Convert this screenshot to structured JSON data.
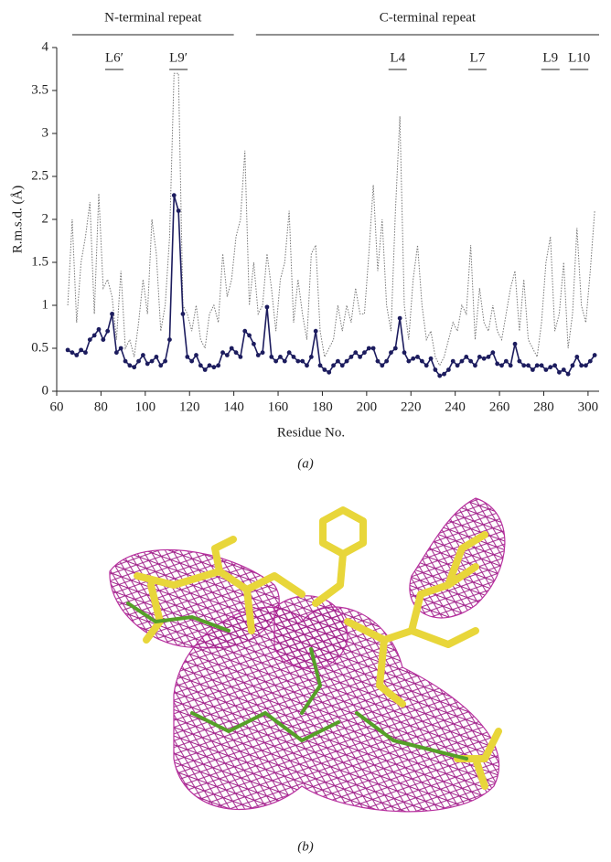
{
  "chart_data": {
    "type": "line",
    "caption": "(a)",
    "xlabel": "Residue No.",
    "ylabel": "R.m.s.d. (Å)",
    "xlim": [
      60,
      305
    ],
    "ylim": [
      0,
      4
    ],
    "xticks": [
      60,
      80,
      100,
      120,
      140,
      160,
      180,
      200,
      220,
      240,
      260,
      280,
      300
    ],
    "yticks": [
      0,
      0.5,
      1,
      1.5,
      2,
      2.5,
      3,
      3.5,
      4
    ],
    "annotations": [
      {
        "text": "N-terminal repeat",
        "range": [
          67,
          140
        ]
      },
      {
        "text": "C-terminal repeat",
        "range": [
          150,
          305
        ]
      },
      {
        "text": "L6′",
        "x": 86
      },
      {
        "text": "L9′",
        "x": 115
      },
      {
        "text": "L4",
        "x": 214
      },
      {
        "text": "L7",
        "x": 250
      },
      {
        "text": "L9",
        "x": 283
      },
      {
        "text": "L10",
        "x": 296
      }
    ],
    "x": [
      65,
      67,
      69,
      71,
      73,
      75,
      77,
      79,
      81,
      83,
      85,
      87,
      89,
      91,
      93,
      95,
      97,
      99,
      101,
      103,
      105,
      107,
      109,
      111,
      113,
      115,
      117,
      119,
      121,
      123,
      125,
      127,
      129,
      131,
      133,
      135,
      137,
      139,
      141,
      143,
      145,
      147,
      149,
      151,
      153,
      155,
      157,
      159,
      161,
      163,
      165,
      167,
      169,
      171,
      173,
      175,
      177,
      179,
      181,
      183,
      185,
      187,
      189,
      191,
      193,
      195,
      197,
      199,
      201,
      203,
      205,
      207,
      209,
      211,
      213,
      215,
      217,
      219,
      221,
      223,
      225,
      227,
      229,
      231,
      233,
      235,
      237,
      239,
      241,
      243,
      245,
      247,
      249,
      251,
      253,
      255,
      257,
      259,
      261,
      263,
      265,
      267,
      269,
      271,
      273,
      275,
      277,
      279,
      281,
      283,
      285,
      287,
      289,
      291,
      293,
      295,
      297,
      299,
      301,
      303
    ],
    "series": [
      {
        "color": "#777777",
        "style": "dotted",
        "markers": false,
        "values": [
          1.0,
          2.0,
          0.8,
          1.5,
          1.8,
          2.2,
          0.9,
          2.3,
          1.2,
          1.3,
          1.1,
          0.6,
          1.4,
          0.5,
          0.6,
          0.4,
          0.8,
          1.3,
          0.9,
          2.0,
          1.6,
          0.7,
          1.0,
          1.8,
          3.7,
          3.7,
          1.0,
          0.9,
          0.7,
          1.0,
          0.6,
          0.5,
          0.9,
          1.0,
          0.8,
          1.6,
          1.1,
          1.3,
          1.8,
          2.0,
          2.8,
          1.0,
          1.5,
          0.9,
          1.0,
          1.6,
          1.2,
          0.7,
          1.3,
          1.5,
          2.1,
          0.8,
          1.3,
          0.9,
          0.6,
          1.6,
          1.7,
          0.7,
          0.4,
          0.5,
          0.6,
          1.0,
          0.7,
          1.0,
          0.8,
          1.2,
          0.9,
          0.9,
          1.6,
          2.4,
          1.4,
          2.0,
          1.0,
          0.7,
          2.1,
          3.2,
          1.0,
          0.6,
          1.3,
          1.7,
          1.0,
          0.6,
          0.7,
          0.4,
          0.3,
          0.4,
          0.6,
          0.8,
          0.7,
          1.0,
          0.9,
          1.7,
          0.6,
          1.2,
          0.8,
          0.7,
          1.0,
          0.7,
          0.6,
          0.9,
          1.2,
          1.4,
          0.7,
          1.3,
          0.6,
          0.5,
          0.4,
          0.8,
          1.5,
          1.8,
          0.7,
          0.9,
          1.5,
          0.5,
          0.9,
          1.9,
          1.0,
          0.8,
          1.4,
          2.1
        ]
      },
      {
        "color": "#1c1c5e",
        "style": "solid",
        "markers": true,
        "values": [
          0.48,
          0.45,
          0.42,
          0.48,
          0.45,
          0.6,
          0.65,
          0.72,
          0.6,
          0.7,
          0.9,
          0.45,
          0.5,
          0.35,
          0.3,
          0.28,
          0.35,
          0.42,
          0.32,
          0.35,
          0.4,
          0.3,
          0.35,
          0.6,
          2.28,
          2.1,
          0.9,
          0.4,
          0.35,
          0.42,
          0.3,
          0.25,
          0.3,
          0.28,
          0.3,
          0.45,
          0.42,
          0.5,
          0.45,
          0.4,
          0.7,
          0.65,
          0.55,
          0.42,
          0.45,
          0.98,
          0.4,
          0.35,
          0.4,
          0.35,
          0.45,
          0.4,
          0.35,
          0.35,
          0.3,
          0.4,
          0.7,
          0.3,
          0.25,
          0.22,
          0.3,
          0.35,
          0.3,
          0.35,
          0.4,
          0.45,
          0.4,
          0.45,
          0.5,
          0.5,
          0.35,
          0.3,
          0.35,
          0.45,
          0.5,
          0.85,
          0.45,
          0.35,
          0.38,
          0.4,
          0.35,
          0.3,
          0.38,
          0.25,
          0.18,
          0.2,
          0.25,
          0.35,
          0.3,
          0.35,
          0.4,
          0.35,
          0.3,
          0.4,
          0.38,
          0.4,
          0.45,
          0.32,
          0.3,
          0.35,
          0.3,
          0.55,
          0.35,
          0.3,
          0.3,
          0.25,
          0.3,
          0.3,
          0.25,
          0.28,
          0.3,
          0.22,
          0.25,
          0.2,
          0.3,
          0.4,
          0.3,
          0.3,
          0.35,
          0.42
        ]
      }
    ]
  },
  "panel_b": {
    "caption": "(b)"
  }
}
